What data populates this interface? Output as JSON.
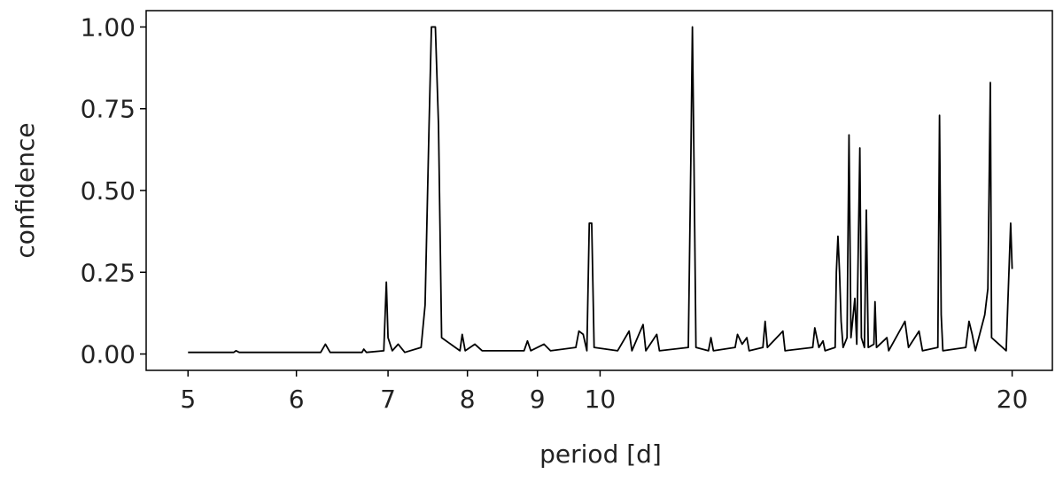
{
  "chart_data": {
    "type": "line",
    "xlabel": "period [d]",
    "ylabel": "confidence",
    "xscale": "log",
    "color": "#000000",
    "xlim": [
      4.66,
      21.4
    ],
    "ylim": [
      -0.05,
      1.05
    ],
    "xticks": [
      5,
      6,
      7,
      8,
      9,
      10,
      20
    ],
    "yticks": [
      {
        "value": 0,
        "label": "0.00"
      },
      {
        "value": 0.25,
        "label": "0.25"
      },
      {
        "value": 0.5,
        "label": "0.50"
      },
      {
        "value": 0.75,
        "label": "0.75"
      },
      {
        "value": 1,
        "label": "1.00"
      }
    ],
    "x": [
      5.0,
      5.4,
      5.42,
      5.45,
      6.25,
      6.3,
      6.35,
      6.7,
      6.72,
      6.75,
      6.95,
      6.98,
      7.0,
      7.05,
      7.12,
      7.2,
      7.4,
      7.45,
      7.5,
      7.53,
      7.58,
      7.62,
      7.66,
      7.9,
      7.93,
      7.97,
      8.1,
      8.2,
      8.8,
      8.85,
      8.9,
      9.1,
      9.2,
      9.6,
      9.65,
      9.72,
      9.78,
      9.82,
      9.86,
      9.9,
      10.3,
      10.5,
      10.55,
      10.75,
      10.8,
      11.0,
      11.05,
      11.6,
      11.65,
      11.68,
      11.71,
      11.75,
      12.0,
      12.05,
      12.1,
      12.55,
      12.6,
      12.7,
      12.8,
      12.85,
      13.15,
      13.2,
      13.25,
      13.6,
      13.65,
      14.3,
      14.35,
      14.45,
      14.55,
      14.6,
      14.85,
      14.88,
      14.92,
      14.96,
      15.0,
      15.05,
      15.15,
      15.2,
      15.25,
      15.35,
      15.4,
      15.48,
      15.52,
      15.6,
      15.65,
      15.7,
      15.85,
      15.88,
      15.92,
      16.2,
      16.25,
      16.6,
      16.7,
      16.8,
      17.1,
      17.2,
      17.65,
      17.7,
      17.75,
      17.8,
      18.5,
      18.6,
      18.7,
      18.8,
      19.1,
      19.2,
      19.28,
      19.32,
      19.8,
      19.95,
      20.0
    ],
    "values": [
      0.005,
      0.005,
      0.01,
      0.005,
      0.005,
      0.03,
      0.005,
      0.005,
      0.015,
      0.005,
      0.01,
      0.22,
      0.05,
      0.01,
      0.03,
      0.005,
      0.02,
      0.15,
      0.7,
      1.0,
      1.0,
      0.7,
      0.05,
      0.01,
      0.06,
      0.01,
      0.03,
      0.01,
      0.01,
      0.04,
      0.01,
      0.03,
      0.01,
      0.02,
      0.07,
      0.06,
      0.01,
      0.4,
      0.4,
      0.02,
      0.01,
      0.07,
      0.01,
      0.09,
      0.01,
      0.06,
      0.01,
      0.02,
      0.6,
      1.0,
      0.6,
      0.02,
      0.01,
      0.05,
      0.01,
      0.02,
      0.06,
      0.03,
      0.05,
      0.01,
      0.02,
      0.1,
      0.02,
      0.07,
      0.01,
      0.02,
      0.08,
      0.02,
      0.04,
      0.01,
      0.02,
      0.25,
      0.36,
      0.25,
      0.1,
      0.02,
      0.05,
      0.67,
      0.05,
      0.17,
      0.03,
      0.63,
      0.05,
      0.02,
      0.44,
      0.02,
      0.03,
      0.16,
      0.02,
      0.05,
      0.01,
      0.08,
      0.1,
      0.02,
      0.07,
      0.01,
      0.02,
      0.73,
      0.12,
      0.01,
      0.02,
      0.1,
      0.06,
      0.01,
      0.12,
      0.2,
      0.83,
      0.05,
      0.01,
      0.4,
      0.26
    ]
  }
}
